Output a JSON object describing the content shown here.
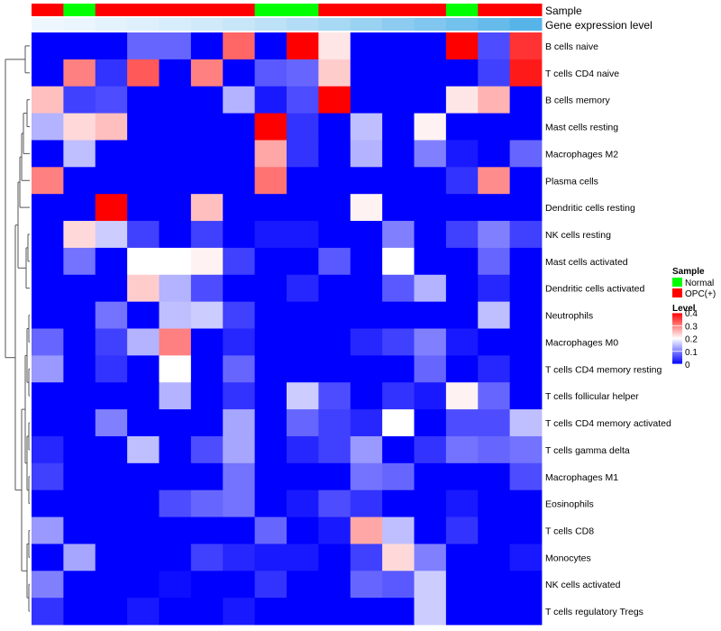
{
  "chart_data": {
    "type": "heatmap",
    "annotation_rows": [
      {
        "name": "Sample",
        "values": [
          "OPC(+)",
          "Normal",
          "OPC(+)",
          "OPC(+)",
          "OPC(+)",
          "OPC(+)",
          "OPC(+)",
          "Normal",
          "Normal",
          "OPC(+)",
          "OPC(+)",
          "OPC(+)",
          "OPC(+)",
          "Normal",
          "OPC(+)",
          "OPC(+)"
        ]
      },
      {
        "name": "Gene expression level",
        "values": [
          0.05,
          0.08,
          0.12,
          0.16,
          0.2,
          0.24,
          0.3,
          0.36,
          0.42,
          0.5,
          0.58,
          0.66,
          0.74,
          0.82,
          0.9,
          1.0
        ]
      }
    ],
    "rows": [
      "B cells naive",
      "T cells CD4 naive",
      "B cells memory",
      "Mast cells resting",
      "Macrophages M2",
      "Plasma cells",
      "Dendritic cells resting",
      "NK cells resting",
      "Mast cells activated",
      "Dendritic cells activated",
      "Neutrophils",
      "Macrophages M0",
      "T cells CD4 memory resting",
      "T cells follicular helper",
      "T cells CD4 memory activated",
      "T cells gamma delta",
      "Macrophages M1",
      "Eosinophils",
      "T cells CD8",
      "Monocytes",
      "NK cells activated",
      "T cells regulatory  Tregs"
    ],
    "values": [
      [
        0.0,
        0.0,
        0.0,
        0.08,
        0.08,
        0.0,
        0.32,
        0.0,
        0.4,
        0.22,
        0.0,
        0.0,
        0.0,
        0.4,
        0.06,
        0.36
      ],
      [
        0.0,
        0.3,
        0.04,
        0.33,
        0.0,
        0.3,
        0.0,
        0.07,
        0.08,
        0.24,
        0.0,
        0.0,
        0.0,
        0.0,
        0.05,
        0.38
      ],
      [
        0.25,
        0.05,
        0.06,
        0.0,
        0.0,
        0.0,
        0.14,
        0.02,
        0.06,
        0.4,
        0.0,
        0.0,
        0.0,
        0.22,
        0.26,
        0.0
      ],
      [
        0.14,
        0.23,
        0.25,
        0.0,
        0.0,
        0.0,
        0.0,
        0.4,
        0.04,
        0.0,
        0.15,
        0.0,
        0.21,
        0.0,
        0.0,
        0.0
      ],
      [
        0.0,
        0.15,
        0.0,
        0.0,
        0.0,
        0.0,
        0.0,
        0.27,
        0.04,
        0.0,
        0.14,
        0.0,
        0.1,
        0.02,
        0.0,
        0.08
      ],
      [
        0.3,
        0.0,
        0.0,
        0.0,
        0.0,
        0.0,
        0.0,
        0.31,
        0.0,
        0.0,
        0.0,
        0.0,
        0.0,
        0.04,
        0.29,
        0.0
      ],
      [
        0.0,
        0.0,
        0.4,
        0.0,
        0.0,
        0.25,
        0.0,
        0.0,
        0.0,
        0.0,
        0.21,
        0.0,
        0.0,
        0.0,
        0.0,
        0.0
      ],
      [
        0.0,
        0.23,
        0.16,
        0.05,
        0.0,
        0.05,
        0.0,
        0.02,
        0.02,
        0.0,
        0.0,
        0.1,
        0.0,
        0.05,
        0.1,
        0.05
      ],
      [
        0.0,
        0.09,
        0.0,
        0.2,
        0.2,
        0.21,
        0.05,
        0.0,
        0.0,
        0.07,
        0.0,
        0.2,
        0.0,
        0.0,
        0.08,
        0.0
      ],
      [
        0.0,
        0.0,
        0.0,
        0.24,
        0.14,
        0.06,
        0.0,
        0.0,
        0.03,
        0.0,
        0.0,
        0.07,
        0.14,
        0.0,
        0.03,
        0.0
      ],
      [
        0.0,
        0.0,
        0.09,
        0.0,
        0.15,
        0.16,
        0.05,
        0.0,
        0.0,
        0.0,
        0.0,
        0.0,
        0.0,
        0.0,
        0.15,
        0.0
      ],
      [
        0.08,
        0.0,
        0.05,
        0.14,
        0.3,
        0.0,
        0.03,
        0.0,
        0.0,
        0.0,
        0.03,
        0.05,
        0.1,
        0.02,
        0.0,
        0.0
      ],
      [
        0.12,
        0.0,
        0.04,
        0.0,
        0.2,
        0.0,
        0.08,
        0.0,
        0.0,
        0.0,
        0.0,
        0.0,
        0.08,
        0.0,
        0.03,
        0.0
      ],
      [
        0.0,
        0.0,
        0.0,
        0.0,
        0.14,
        0.0,
        0.04,
        0.0,
        0.16,
        0.06,
        0.0,
        0.04,
        0.02,
        0.21,
        0.08,
        0.0
      ],
      [
        0.0,
        0.0,
        0.1,
        0.0,
        0.0,
        0.0,
        0.13,
        0.0,
        0.08,
        0.05,
        0.03,
        0.2,
        0.0,
        0.06,
        0.06,
        0.15
      ],
      [
        0.03,
        0.0,
        0.0,
        0.15,
        0.0,
        0.06,
        0.13,
        0.0,
        0.03,
        0.05,
        0.12,
        0.0,
        0.04,
        0.09,
        0.08,
        0.09
      ],
      [
        0.05,
        0.0,
        0.0,
        0.0,
        0.0,
        0.0,
        0.09,
        0.0,
        0.0,
        0.0,
        0.09,
        0.08,
        0.0,
        0.0,
        0.0,
        0.06
      ],
      [
        0.0,
        0.0,
        0.0,
        0.0,
        0.06,
        0.08,
        0.09,
        0.0,
        0.02,
        0.06,
        0.04,
        0.0,
        0.0,
        0.02,
        0.0,
        0.0
      ],
      [
        0.12,
        0.0,
        0.0,
        0.0,
        0.0,
        0.0,
        0.0,
        0.08,
        0.0,
        0.02,
        0.27,
        0.15,
        0.0,
        0.04,
        0.0,
        0.0
      ],
      [
        0.0,
        0.13,
        0.0,
        0.0,
        0.0,
        0.05,
        0.03,
        0.02,
        0.02,
        0.0,
        0.05,
        0.23,
        0.1,
        0.0,
        0.0,
        0.02
      ],
      [
        0.1,
        0.0,
        0.0,
        0.0,
        0.01,
        0.0,
        0.0,
        0.04,
        0.0,
        0.0,
        0.08,
        0.07,
        0.16,
        0.0,
        0.0,
        0.0
      ],
      [
        0.04,
        0.0,
        0.0,
        0.02,
        0.0,
        0.0,
        0.02,
        0.0,
        0.0,
        0.0,
        0.0,
        0.0,
        0.16,
        0.0,
        0.0,
        0.0
      ]
    ],
    "legend_sample": {
      "title": "Sample",
      "entries": [
        {
          "label": "Normal",
          "color": "#00ff00"
        },
        {
          "label": "OPC(+)",
          "color": "#ff0000"
        }
      ]
    },
    "legend_level": {
      "title": "Level",
      "ticks": [
        0.4,
        0.3,
        0.2,
        0.1,
        0
      ],
      "tick_labels": [
        "0.4",
        "0.3",
        "0.2",
        "0.1",
        "0"
      ],
      "range": [
        0,
        0.4
      ],
      "colors": {
        "low": "#0000ff",
        "mid": "#ffffff",
        "high": "#ff0000"
      }
    },
    "annotation_colors": {
      "gene_expression_low": "#f7fbff",
      "gene_expression_high": "#56b4e9"
    }
  }
}
